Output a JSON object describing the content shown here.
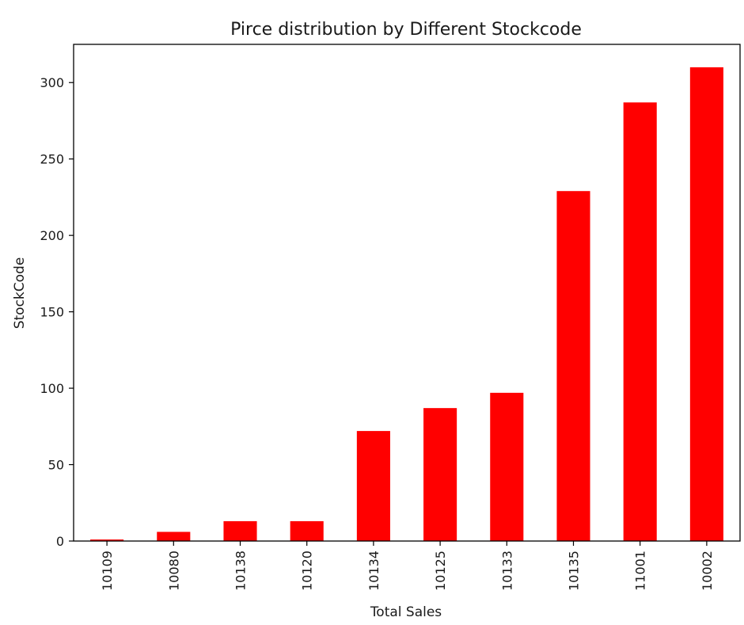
{
  "chart_data": {
    "type": "bar",
    "title": "Pirce distribution by Different Stockcode",
    "xlabel": "Total Sales",
    "ylabel": "StockCode",
    "categories": [
      "10109",
      "10080",
      "10138",
      "10120",
      "10134",
      "10125",
      "10133",
      "10135",
      "11001",
      "10002"
    ],
    "values": [
      1,
      6,
      13,
      13,
      72,
      87,
      97,
      229,
      287,
      310
    ],
    "ylim": [
      0,
      325
    ],
    "yticks": [
      0,
      50,
      100,
      150,
      200,
      250,
      300
    ],
    "bar_color": "#ff0000",
    "grid": false,
    "legend": "none"
  }
}
